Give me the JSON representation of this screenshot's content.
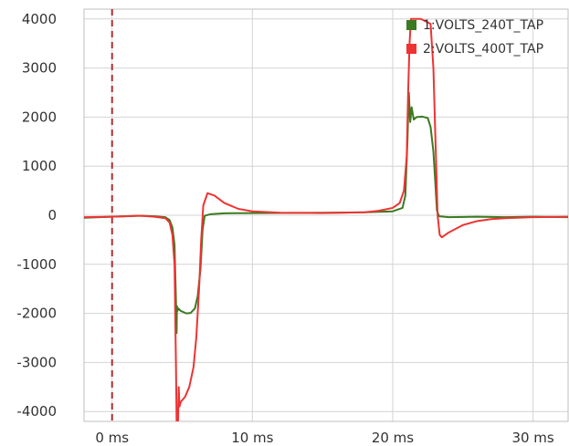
{
  "chart_data": {
    "type": "line",
    "title": "",
    "xlabel": "",
    "ylabel": "",
    "xlim": [
      -2,
      32.5
    ],
    "ylim": [
      -4200,
      4200
    ],
    "grid": true,
    "legend_position": "top-right",
    "x_ticks": [
      0,
      10,
      20,
      30
    ],
    "x_tick_labels": [
      "0 ms",
      "10 ms",
      "20 ms",
      "30 ms"
    ],
    "y_ticks": [
      4000,
      3000,
      2000,
      1000,
      0,
      -1000,
      -2000,
      -3000,
      -4000
    ],
    "y_tick_labels": [
      "4000",
      "3000",
      "2000",
      "1000",
      "0",
      "-1000",
      "-2000",
      "-3000",
      "-4000"
    ],
    "marker_line": {
      "x": 0,
      "color": "#b03030",
      "style": "dashed"
    },
    "series": [
      {
        "name": "1:VOLTS_240T_TAP",
        "color": "#3a7a20",
        "points": [
          [
            -2,
            -50
          ],
          [
            0,
            -30
          ],
          [
            2,
            -10
          ],
          [
            3,
            -20
          ],
          [
            3.8,
            -40
          ],
          [
            4.1,
            -100
          ],
          [
            4.3,
            -250
          ],
          [
            4.45,
            -600
          ],
          [
            4.55,
            -1700
          ],
          [
            4.6,
            -2400
          ],
          [
            4.62,
            -1850
          ],
          [
            4.66,
            -1950
          ],
          [
            4.72,
            -1900
          ],
          [
            4.9,
            -1950
          ],
          [
            5.3,
            -2000
          ],
          [
            5.6,
            -1990
          ],
          [
            5.9,
            -1900
          ],
          [
            6.1,
            -1650
          ],
          [
            6.3,
            -1100
          ],
          [
            6.45,
            -300
          ],
          [
            6.6,
            -10
          ],
          [
            7,
            20
          ],
          [
            8,
            40
          ],
          [
            10,
            45
          ],
          [
            15,
            50
          ],
          [
            18,
            60
          ],
          [
            20,
            80
          ],
          [
            20.7,
            150
          ],
          [
            20.9,
            400
          ],
          [
            21.05,
            1500
          ],
          [
            21.15,
            2500
          ],
          [
            21.25,
            1900
          ],
          [
            21.35,
            2200
          ],
          [
            21.5,
            1950
          ],
          [
            21.7,
            2000
          ],
          [
            22.1,
            2010
          ],
          [
            22.5,
            1980
          ],
          [
            22.7,
            1800
          ],
          [
            22.9,
            1300
          ],
          [
            23.05,
            600
          ],
          [
            23.15,
            100
          ],
          [
            23.3,
            -20
          ],
          [
            24,
            -40
          ],
          [
            26,
            -30
          ],
          [
            28,
            -40
          ],
          [
            30,
            -30
          ],
          [
            32.5,
            -40
          ]
        ]
      },
      {
        "name": "2:VOLTS_400T_TAP",
        "color": "#ee3333",
        "points": [
          [
            -2,
            -40
          ],
          [
            0,
            -30
          ],
          [
            2,
            -10
          ],
          [
            3,
            -30
          ],
          [
            3.8,
            -60
          ],
          [
            4.1,
            -150
          ],
          [
            4.3,
            -400
          ],
          [
            4.45,
            -1000
          ],
          [
            4.55,
            -3000
          ],
          [
            4.6,
            -4200
          ],
          [
            4.7,
            -4200
          ],
          [
            4.75,
            -3500
          ],
          [
            4.8,
            -3900
          ],
          [
            4.9,
            -3800
          ],
          [
            5.2,
            -3700
          ],
          [
            5.5,
            -3500
          ],
          [
            5.8,
            -3100
          ],
          [
            6.0,
            -2500
          ],
          [
            6.2,
            -1500
          ],
          [
            6.35,
            -500
          ],
          [
            6.5,
            200
          ],
          [
            6.8,
            450
          ],
          [
            7.3,
            400
          ],
          [
            8,
            250
          ],
          [
            9,
            130
          ],
          [
            10,
            80
          ],
          [
            12,
            50
          ],
          [
            15,
            45
          ],
          [
            18,
            60
          ],
          [
            19,
            90
          ],
          [
            20,
            150
          ],
          [
            20.5,
            250
          ],
          [
            20.8,
            500
          ],
          [
            21,
            1200
          ],
          [
            21.1,
            2500
          ],
          [
            21.2,
            3500
          ],
          [
            21.3,
            4000
          ],
          [
            22,
            4000
          ],
          [
            22.7,
            3900
          ],
          [
            22.9,
            3000
          ],
          [
            23.0,
            2000
          ],
          [
            23.1,
            1000
          ],
          [
            23.2,
            0
          ],
          [
            23.35,
            -400
          ],
          [
            23.5,
            -450
          ],
          [
            24,
            -350
          ],
          [
            25,
            -200
          ],
          [
            26,
            -120
          ],
          [
            27,
            -80
          ],
          [
            28,
            -60
          ],
          [
            30,
            -40
          ],
          [
            32.5,
            -30
          ]
        ]
      }
    ]
  }
}
